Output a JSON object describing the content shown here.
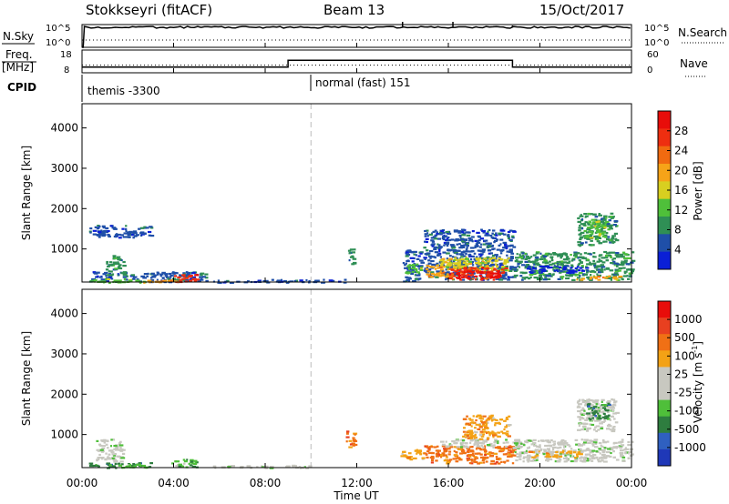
{
  "header": {
    "station": "Stokkseyri (fitACF)",
    "beam": "Beam 13",
    "date": "15/Oct/2017"
  },
  "top_panels": {
    "nsky_label": "N.Sky",
    "nsky_ticks": [
      "10^5",
      "10^0"
    ],
    "nsearch_ticks": [
      "10^5",
      "10^0"
    ],
    "nsearch_label": "N.Search",
    "freq_label_line1": "Freq.",
    "freq_label_line2": "[MHz]",
    "freq_ticks": [
      "18",
      "8"
    ],
    "nave_ticks": [
      "60",
      "0"
    ],
    "nave_label": "Nave",
    "cpid_label": "CPID",
    "cpid_segments": [
      {
        "label": "themis -3300",
        "start_hour": 0.0,
        "end_hour": 10.0
      },
      {
        "label": "normal (fast) 151",
        "start_hour": 10.0,
        "end_hour": 24.0
      }
    ]
  },
  "axes": {
    "xlabel": "Time UT",
    "ylabel": "Slant Range [km]",
    "x_ticks": [
      "00:00",
      "04:00",
      "08:00",
      "12:00",
      "16:00",
      "20:00",
      "00:00"
    ],
    "y_ticks": [
      "1000",
      "2000",
      "3000",
      "4000"
    ],
    "power_colorbar_label": "Power [dB]",
    "power_ticks": [
      "28",
      "24",
      "20",
      "16",
      "12",
      "8",
      "4"
    ],
    "velocity_colorbar_label_main": "Velocity",
    "velocity_colorbar_label_units": "[m s",
    "velocity_colorbar_label_sup": "-1",
    "velocity_colorbar_label_close": "]",
    "velocity_ticks": [
      "1000",
      "500",
      "100",
      "25",
      "-25",
      "-100",
      "-500",
      "-1000"
    ]
  },
  "colors": {
    "power": [
      "#0a1fd6",
      "#1f4fa8",
      "#2f8f55",
      "#4fc03a",
      "#d8cf20",
      "#f6a318",
      "#f06a10",
      "#ee2e10",
      "#e80d0a"
    ],
    "velocity": [
      "#1f38b8",
      "#2f60c0",
      "#2e7d3f",
      "#4fbf3a",
      "#c8c8c0",
      "#c8c8c0",
      "#f3a215",
      "#f07015",
      "#e84020",
      "#e80d0a"
    ]
  },
  "chart_data": [
    {
      "type": "line",
      "name": "nsky-nsearch",
      "title": "",
      "x_range_hours": [
        0,
        24
      ],
      "description_points": [
        {
          "x": 0.0,
          "y": 1
        },
        {
          "x": 0.1,
          "y": 25000
        },
        {
          "x": 14.0,
          "y": 30000
        },
        {
          "x": 18.8,
          "y": 100000
        },
        {
          "x": 24.0,
          "y": 30000
        }
      ]
    },
    {
      "type": "line",
      "name": "freq-nave",
      "freq_points": [
        {
          "x": 0.0,
          "y": 10.5
        },
        {
          "x": 9.0,
          "y": 10.5
        },
        {
          "x": 9.0,
          "y": 13.5
        },
        {
          "x": 18.8,
          "y": 13.5
        },
        {
          "x": 18.8,
          "y": 10.5
        },
        {
          "x": 24.0,
          "y": 10.5
        }
      ],
      "nave_dotted_y": 20
    },
    {
      "type": "heatmap",
      "name": "power",
      "xlabel": "Time UT",
      "ylabel": "Slant Range [km]",
      "xlim_hours": [
        0,
        24
      ],
      "ylim_km": [
        180,
        4600
      ],
      "colorbar": {
        "label": "Power [dB]",
        "ticks": [
          4,
          8,
          12,
          16,
          20,
          24,
          28
        ]
      },
      "regions": [
        {
          "t0": 0.4,
          "t1": 5.4,
          "r0": 200,
          "r1": 450,
          "level": 1
        },
        {
          "t0": 0.3,
          "t1": 2.8,
          "r0": 180,
          "r1": 280,
          "level": 3
        },
        {
          "t0": 1.0,
          "t1": 1.8,
          "r0": 350,
          "r1": 850,
          "level": 2
        },
        {
          "t0": 4.0,
          "t1": 5.0,
          "r0": 200,
          "r1": 380,
          "level": 7
        },
        {
          "t0": 2.5,
          "t1": 4.2,
          "r0": 180,
          "r1": 260,
          "level": 5
        },
        {
          "t0": 5.5,
          "t1": 10.0,
          "r0": 180,
          "r1": 260,
          "level": 1
        },
        {
          "t0": 10.0,
          "t1": 11.5,
          "r0": 180,
          "r1": 260,
          "level": 1
        },
        {
          "t0": 11.6,
          "t1": 11.9,
          "r0": 650,
          "r1": 1100,
          "level": 2
        },
        {
          "t0": 14.0,
          "t1": 14.8,
          "r0": 200,
          "r1": 1000,
          "level": 1
        },
        {
          "t0": 14.1,
          "t1": 14.8,
          "r0": 400,
          "r1": 650,
          "level": 3
        },
        {
          "t0": 14.9,
          "t1": 18.8,
          "r0": 250,
          "r1": 1500,
          "level": 1
        },
        {
          "t0": 15.0,
          "t1": 16.0,
          "r0": 330,
          "r1": 620,
          "level": 5
        },
        {
          "t0": 15.6,
          "t1": 18.6,
          "r0": 480,
          "r1": 820,
          "level": 4
        },
        {
          "t0": 16.0,
          "t1": 18.5,
          "r0": 260,
          "r1": 560,
          "level": 7
        },
        {
          "t0": 16.3,
          "t1": 18.2,
          "r0": 300,
          "r1": 480,
          "level": 8
        },
        {
          "t0": 18.8,
          "t1": 24.0,
          "r0": 250,
          "r1": 950,
          "level": 2
        },
        {
          "t0": 19.4,
          "t1": 22.0,
          "r0": 420,
          "r1": 600,
          "level": 0
        },
        {
          "t0": 21.5,
          "t1": 23.5,
          "r0": 250,
          "r1": 350,
          "level": 5
        },
        {
          "t0": 21.6,
          "t1": 23.3,
          "r0": 1100,
          "r1": 1900,
          "level": 2
        },
        {
          "t0": 22.0,
          "t1": 23.0,
          "r0": 1300,
          "r1": 1750,
          "level": 3
        },
        {
          "t0": 0.3,
          "t1": 3.0,
          "r0": 1300,
          "r1": 1600,
          "level": 1
        }
      ]
    },
    {
      "type": "heatmap",
      "name": "velocity",
      "xlabel": "Time UT",
      "ylabel": "Slant Range [km]",
      "xlim_hours": [
        0,
        24
      ],
      "ylim_km": [
        180,
        4600
      ],
      "colorbar": {
        "label": "Velocity [m s-1]",
        "ticks": [
          -1000,
          -500,
          -100,
          -25,
          25,
          100,
          500,
          1000
        ]
      },
      "regions": [
        {
          "t0": 0.6,
          "t1": 1.8,
          "r0": 350,
          "r1": 900,
          "level": 4
        },
        {
          "t0": 0.3,
          "t1": 3.0,
          "r0": 190,
          "r1": 320,
          "level": 2
        },
        {
          "t0": 3.8,
          "t1": 5.0,
          "r0": 190,
          "r1": 400,
          "level": 3
        },
        {
          "t0": 1.5,
          "t1": 2.8,
          "r0": 200,
          "r1": 280,
          "level": 3
        },
        {
          "t0": 5.5,
          "t1": 10.0,
          "r0": 190,
          "r1": 260,
          "level": 4
        },
        {
          "t0": 11.5,
          "t1": 11.9,
          "r0": 700,
          "r1": 1100,
          "level": 7
        },
        {
          "t0": 13.9,
          "t1": 14.9,
          "r0": 400,
          "r1": 650,
          "level": 6
        },
        {
          "t0": 14.9,
          "t1": 18.8,
          "r0": 300,
          "r1": 750,
          "level": 7
        },
        {
          "t0": 15.6,
          "t1": 18.6,
          "r0": 700,
          "r1": 900,
          "level": 4
        },
        {
          "t0": 16.6,
          "t1": 18.6,
          "r0": 900,
          "r1": 1500,
          "level": 6
        },
        {
          "t0": 18.8,
          "t1": 24.0,
          "r0": 350,
          "r1": 900,
          "level": 4
        },
        {
          "t0": 19.4,
          "t1": 21.8,
          "r0": 450,
          "r1": 620,
          "level": 6
        },
        {
          "t0": 21.6,
          "t1": 23.3,
          "r0": 1100,
          "r1": 1900,
          "level": 4
        },
        {
          "t0": 22.0,
          "t1": 23.0,
          "r0": 1400,
          "r1": 1800,
          "level": 2
        }
      ]
    }
  ]
}
